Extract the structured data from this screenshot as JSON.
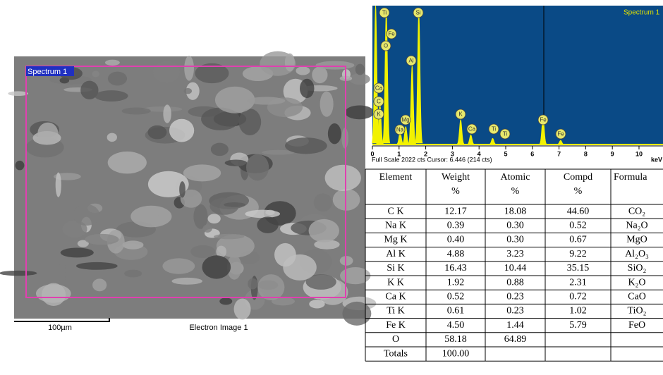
{
  "sem_image": {
    "label": "Spectrum 1",
    "scale_bar": "100µm",
    "caption": "Electron Image 1"
  },
  "chart_data": {
    "type": "spectrum",
    "title": "Spectrum 1",
    "x_label": "keV",
    "footer": "Full Scale 2022 cts Cursor: 6.446 (214 cts)",
    "xlim": [
      0,
      10.9
    ],
    "ylim": [
      0,
      2022
    ],
    "xticks": [
      0,
      1,
      2,
      3,
      4,
      5,
      6,
      7,
      8,
      9,
      10
    ],
    "color": "#f2f200",
    "background": "#0a4a86",
    "peaks": [
      {
        "kev": 0.12,
        "cts": 2022
      },
      {
        "kev": 0.28,
        "cts": 600
      },
      {
        "kev": 0.52,
        "cts": 1950
      },
      {
        "kev": 1.04,
        "cts": 180
      },
      {
        "kev": 1.25,
        "cts": 260
      },
      {
        "kev": 1.49,
        "cts": 1150
      },
      {
        "kev": 1.74,
        "cts": 1950
      },
      {
        "kev": 3.31,
        "cts": 360
      },
      {
        "kev": 3.69,
        "cts": 140
      },
      {
        "kev": 4.51,
        "cts": 90
      },
      {
        "kev": 6.4,
        "cts": 400
      },
      {
        "kev": 7.06,
        "cts": 60
      }
    ],
    "peak_labels": [
      "Ti",
      "Si",
      "Fe",
      "O",
      "Al",
      "Ca",
      "C",
      "K",
      "Mg",
      "Na",
      "K",
      "Ca",
      "Ti",
      "Ti",
      "Fe",
      "Fe"
    ]
  },
  "table": {
    "header": [
      [
        "Element"
      ],
      [
        "Weight",
        "%"
      ],
      [
        "Atomic",
        "%"
      ],
      [
        "Compd",
        "%"
      ],
      [
        "Formula"
      ]
    ],
    "rows": [
      {
        "element": "C K",
        "weight": "12.17",
        "atomic": "18.08",
        "compd": "44.60",
        "formula": "CO₂"
      },
      {
        "element": "Na K",
        "weight": "0.39",
        "atomic": "0.30",
        "compd": "0.52",
        "formula": "Na₂O"
      },
      {
        "element": "Mg K",
        "weight": "0.40",
        "atomic": "0.30",
        "compd": "0.67",
        "formula": "MgO"
      },
      {
        "element": "Al K",
        "weight": "4.88",
        "atomic": "3.23",
        "compd": "9.22",
        "formula": "Al₂O₃"
      },
      {
        "element": "Si K",
        "weight": "16.43",
        "atomic": "10.44",
        "compd": "35.15",
        "formula": "SiO₂"
      },
      {
        "element": "K K",
        "weight": "1.92",
        "atomic": "0.88",
        "compd": "2.31",
        "formula": "K₂O"
      },
      {
        "element": "Ca K",
        "weight": "0.52",
        "atomic": "0.23",
        "compd": "0.72",
        "formula": "CaO"
      },
      {
        "element": "Ti K",
        "weight": "0.61",
        "atomic": "0.23",
        "compd": "1.02",
        "formula": "TiO₂"
      },
      {
        "element": "Fe K",
        "weight": "4.50",
        "atomic": "1.44",
        "compd": "5.79",
        "formula": "FeO"
      },
      {
        "element": "O",
        "weight": "58.18",
        "atomic": "64.89"
      },
      {
        "element": "Totals",
        "weight": "100.00"
      }
    ]
  }
}
